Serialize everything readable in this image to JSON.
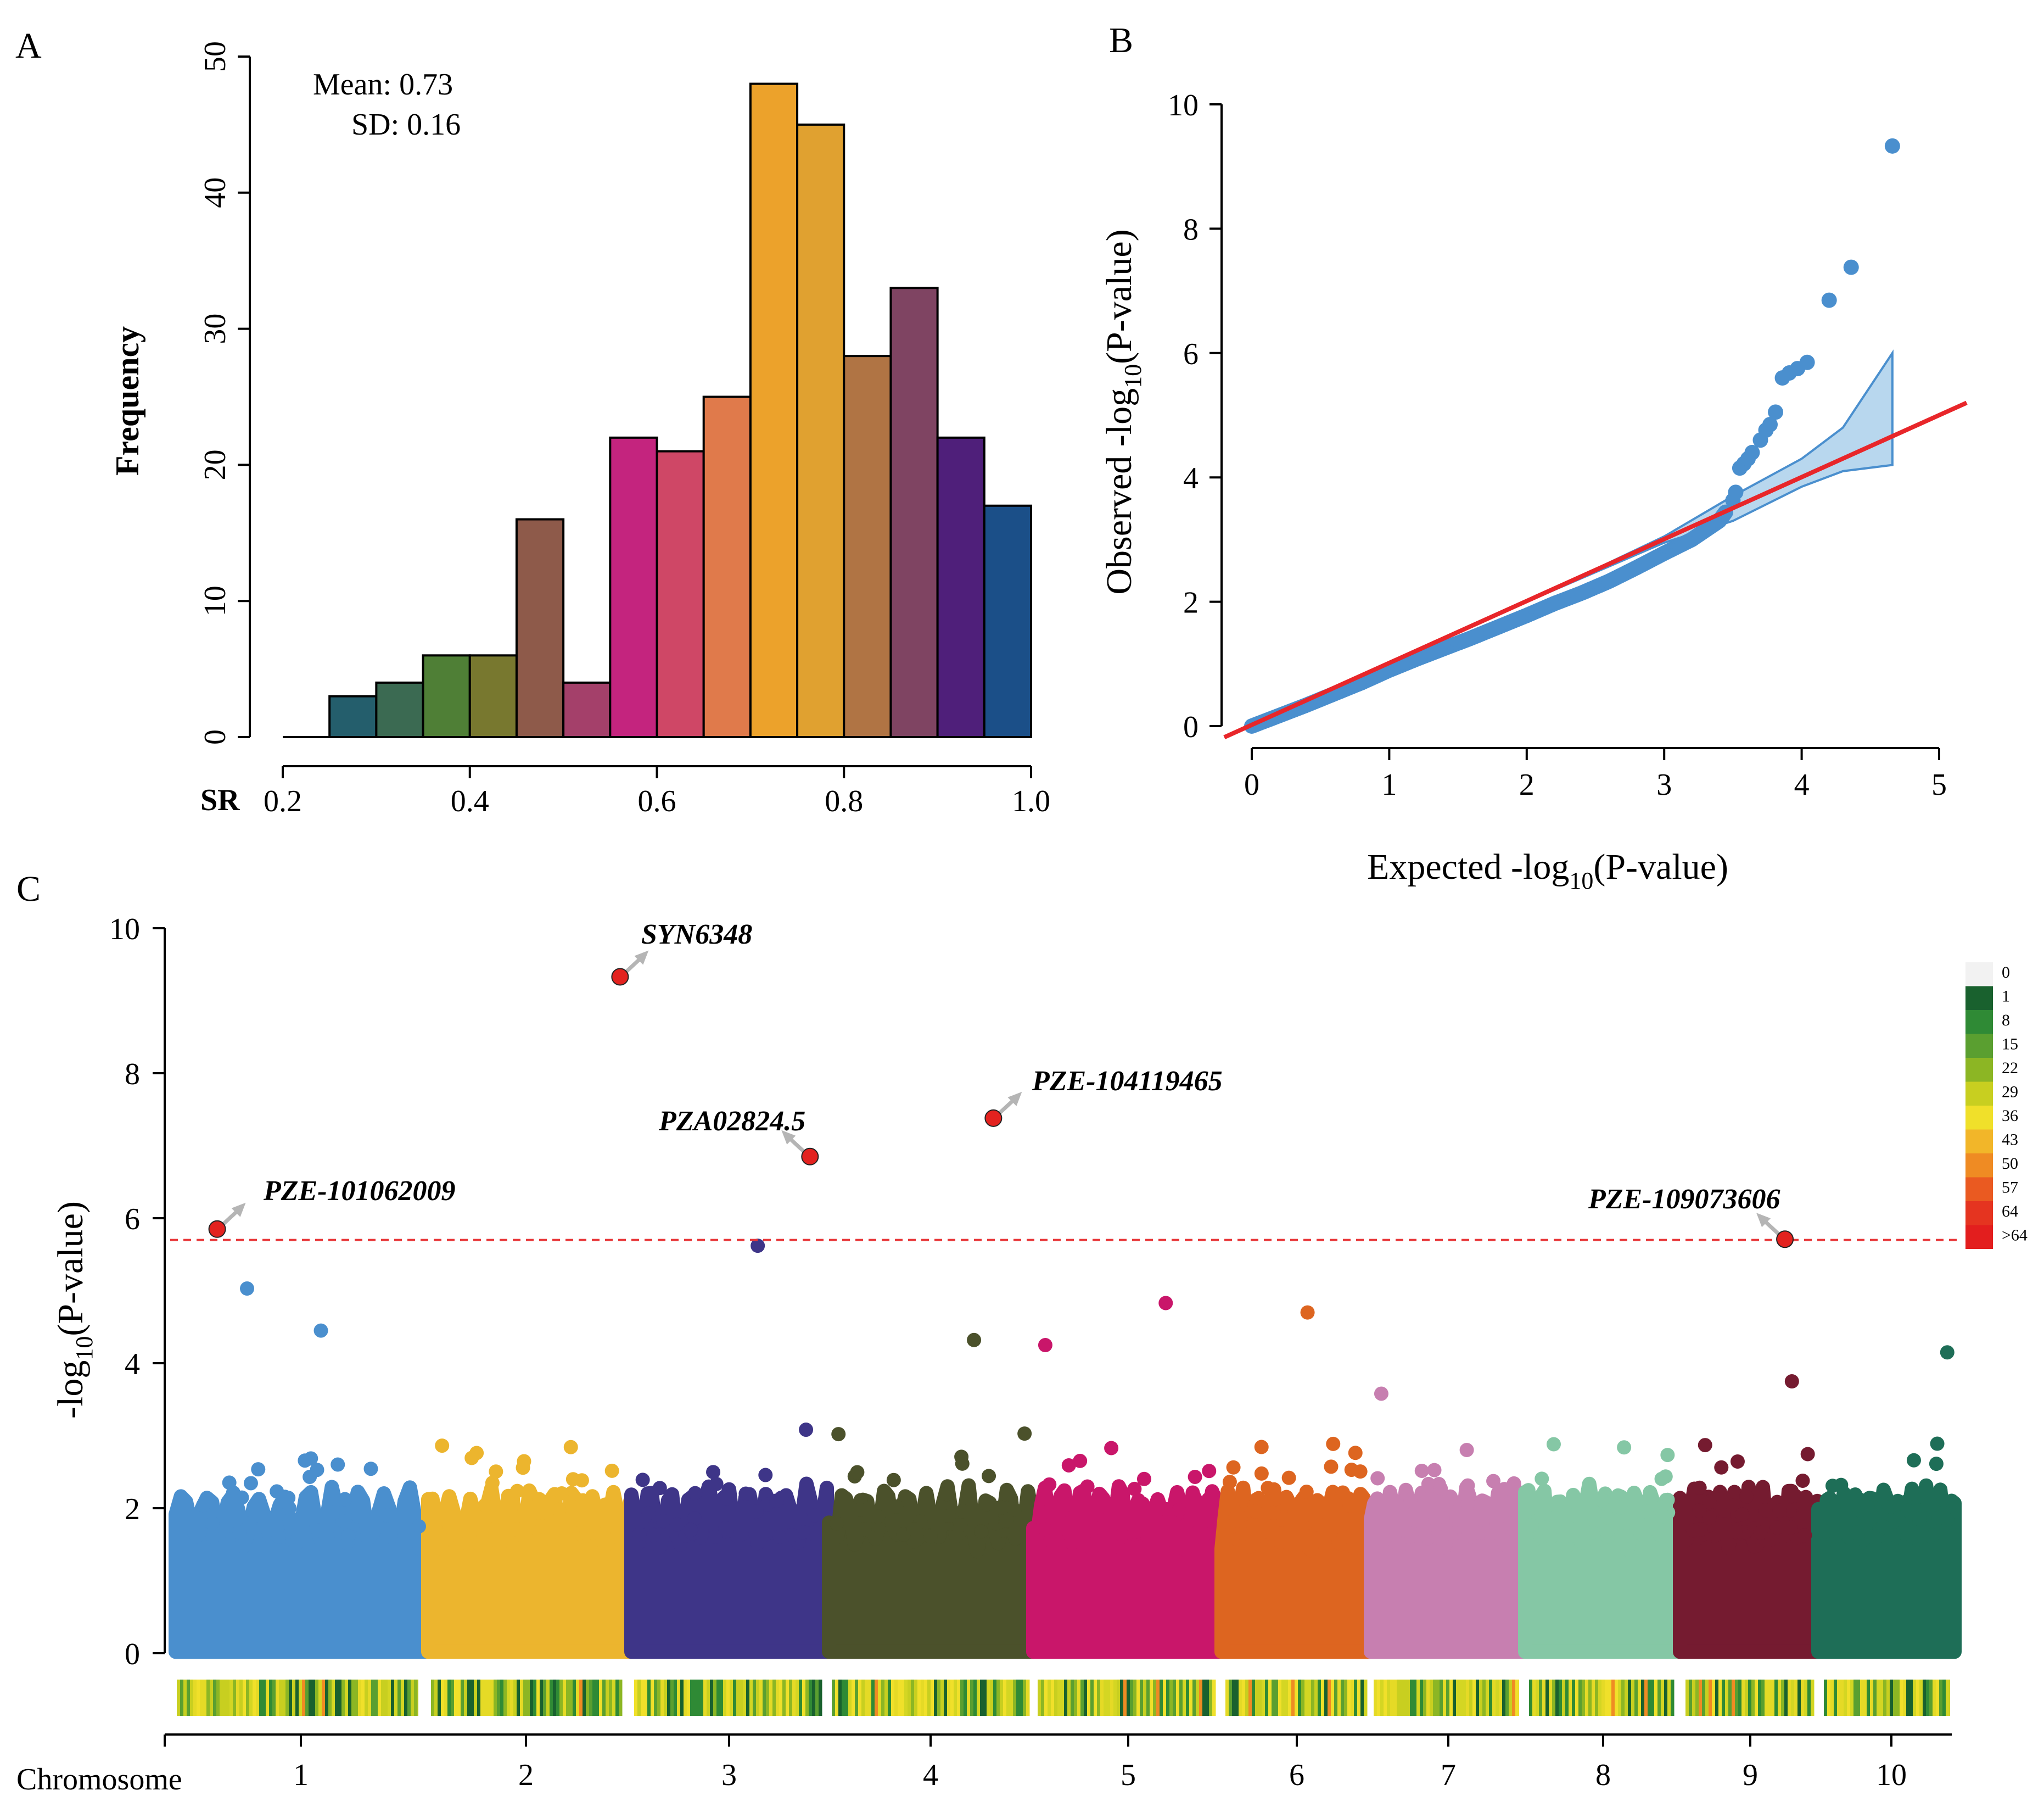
{
  "panels": {
    "A": {
      "label": "A"
    },
    "B": {
      "label": "B"
    },
    "C": {
      "label": "C"
    }
  },
  "colors": {
    "hist_bars": [
      "#245e6c",
      "#3b6a52",
      "#4f7f36",
      "#78782f",
      "#8e5a4a",
      "#a4406a",
      "#c4247e",
      "#cf4766",
      "#e07a4b",
      "#eca22b",
      "#e0a130",
      "#b07444",
      "#7f4462",
      "#4f1f7a",
      "#1b4f88"
    ],
    "qq_points": "#4a8fce",
    "qq_band": "#b8d7ee",
    "qq_line": "#e8262a",
    "threshold": "#e8393b",
    "highlight": "#e3221f",
    "chromosomes": [
      "#4a8fce",
      "#ecb52e",
      "#3e3588",
      "#4b512b",
      "#c9166a",
      "#dd6520",
      "#c77fb0",
      "#85c7a5",
      "#751b30",
      "#1e6e57"
    ],
    "heat_scale": [
      "#f2f2f2",
      "#19612e",
      "#2f8a35",
      "#5a9f30",
      "#8cb624",
      "#c8cf20",
      "#f0e02a",
      "#f2b629",
      "#ef8b23",
      "#ea5a21",
      "#e53420",
      "#e31e1e"
    ]
  },
  "chart_data": [
    {
      "type": "bar",
      "panel": "A",
      "title": "",
      "xlabel": "SR",
      "ylabel": "Frequency",
      "annotation_mean": "Mean: 0.73",
      "annotation_sd": "SD: 0.16",
      "bin_edges": [
        0.25,
        0.3,
        0.35,
        0.4,
        0.45,
        0.5,
        0.55,
        0.6,
        0.65,
        0.7,
        0.75,
        0.8,
        0.85,
        0.9,
        0.95,
        1.0
      ],
      "values": [
        3,
        4,
        6,
        6,
        16,
        4,
        22,
        21,
        25,
        48,
        45,
        28,
        33,
        22,
        17
      ],
      "xlim": [
        0.2,
        1.0
      ],
      "ylim": [
        0,
        50
      ],
      "xticks": [
        "0.2",
        "0.4",
        "0.6",
        "0.8",
        "1.0"
      ],
      "xtick_values": [
        0.2,
        0.4,
        0.6,
        0.8,
        1.0
      ],
      "yticks": [
        "0",
        "10",
        "20",
        "30",
        "40",
        "50"
      ],
      "ytick_values": [
        0,
        10,
        20,
        30,
        40,
        50
      ]
    },
    {
      "type": "scatter",
      "panel": "B",
      "xlabel_prefix": "Expected -log",
      "xlabel_sub": "10",
      "xlabel_suffix": "(P-value)",
      "ylabel_prefix": "Observed -log",
      "ylabel_sub": "10",
      "ylabel_suffix": "(P-value)",
      "xlim": [
        0,
        5
      ],
      "ylim": [
        0,
        10
      ],
      "xticks": [
        "0",
        "1",
        "2",
        "3",
        "4",
        "5"
      ],
      "xtick_values": [
        0,
        1,
        2,
        3,
        4,
        5
      ],
      "yticks": [
        "0",
        "2",
        "4",
        "6",
        "8",
        "10"
      ],
      "ytick_values": [
        0,
        2,
        4,
        6,
        8,
        10
      ],
      "diagonal": [
        [
          -0.2,
          -0.18
        ],
        [
          5.2,
          5.2
        ]
      ],
      "confidence_band_upper": [
        [
          0,
          0
        ],
        [
          1,
          1
        ],
        [
          2,
          2
        ],
        [
          3,
          3.05
        ],
        [
          3.5,
          3.7
        ],
        [
          4,
          4.3
        ],
        [
          4.3,
          4.8
        ],
        [
          4.66,
          6.0
        ]
      ],
      "confidence_band_lower": [
        [
          4.66,
          4.2
        ],
        [
          4.3,
          4.1
        ],
        [
          4,
          3.85
        ],
        [
          3.5,
          3.3
        ],
        [
          3,
          2.95
        ],
        [
          2,
          2
        ],
        [
          1,
          1
        ],
        [
          0,
          0
        ]
      ],
      "points_curve": [
        [
          0,
          0
        ],
        [
          0.2,
          0.17
        ],
        [
          0.4,
          0.34
        ],
        [
          0.6,
          0.52
        ],
        [
          0.8,
          0.7
        ],
        [
          1.0,
          0.9
        ],
        [
          1.2,
          1.08
        ],
        [
          1.4,
          1.25
        ],
        [
          1.6,
          1.42
        ],
        [
          1.8,
          1.6
        ],
        [
          2.0,
          1.78
        ],
        [
          2.2,
          1.97
        ],
        [
          2.4,
          2.14
        ],
        [
          2.6,
          2.33
        ],
        [
          2.8,
          2.55
        ],
        [
          3.0,
          2.78
        ],
        [
          3.2,
          3.0
        ],
        [
          3.3,
          3.15
        ],
        [
          3.4,
          3.3
        ],
        [
          3.45,
          3.45
        ]
      ],
      "points_tail": [
        [
          3.5,
          3.63
        ],
        [
          3.52,
          3.76
        ],
        [
          3.55,
          4.15
        ],
        [
          3.58,
          4.22
        ],
        [
          3.61,
          4.3
        ],
        [
          3.64,
          4.4
        ],
        [
          3.7,
          4.6
        ],
        [
          3.74,
          4.76
        ],
        [
          3.77,
          4.85
        ],
        [
          3.81,
          5.05
        ],
        [
          3.86,
          5.6
        ],
        [
          3.91,
          5.68
        ],
        [
          3.97,
          5.75
        ],
        [
          4.04,
          5.85
        ],
        [
          4.2,
          6.85
        ],
        [
          4.36,
          7.38
        ],
        [
          4.66,
          9.33
        ]
      ]
    },
    {
      "type": "scatter",
      "panel": "C",
      "xlabel": "Chromosome",
      "ylabel_prefix": "-log",
      "ylabel_sub": "10",
      "ylabel_suffix": "(P-value)",
      "ylim": [
        0,
        10
      ],
      "yticks": [
        "0",
        "2",
        "4",
        "6",
        "8",
        "10"
      ],
      "ytick_values": [
        0,
        2,
        4,
        6,
        8,
        10
      ],
      "threshold": 5.7,
      "chromosomes": [
        "1",
        "2",
        "3",
        "4",
        "5",
        "6",
        "7",
        "8",
        "9",
        "10"
      ],
      "chromosome_lengths": [
        301,
        237,
        232,
        241,
        217,
        169,
        176,
        175,
        157,
        150
      ],
      "top_snps": [
        {
          "name": "PZE-101062009",
          "chromosome": "1",
          "position": 50,
          "p": 5.85
        },
        {
          "name": "SYN6348",
          "chromosome": "2",
          "position": 225,
          "p": 9.33
        },
        {
          "name": "PZA02824.5",
          "chromosome": "3",
          "position": 212,
          "p": 6.85
        },
        {
          "name": "PZE-104119465",
          "chromosome": "4",
          "position": 195,
          "p": 7.38
        },
        {
          "name": "PZE-109073606",
          "chromosome": "9",
          "position": 120,
          "p": 5.71
        }
      ],
      "other_points": [
        {
          "chromosome": "1",
          "position": 86,
          "p": 5.03
        },
        {
          "chromosome": "1",
          "position": 175,
          "p": 4.45
        },
        {
          "chromosome": "3",
          "position": 150,
          "p": 5.62
        },
        {
          "chromosome": "4",
          "position": 172,
          "p": 4.32
        },
        {
          "chromosome": "5",
          "position": 14,
          "p": 4.25
        },
        {
          "chromosome": "5",
          "position": 154,
          "p": 4.83
        },
        {
          "chromosome": "6",
          "position": 98,
          "p": 4.7
        },
        {
          "chromosome": "7",
          "position": 12,
          "p": 3.58
        },
        {
          "chromosome": "9",
          "position": 128,
          "p": 3.75
        },
        {
          "chromosome": "10",
          "position": 142,
          "p": 4.15
        }
      ],
      "heat_legend_labels": [
        "0",
        "1",
        "8",
        "15",
        "22",
        "29",
        "36",
        "43",
        "50",
        "57",
        "64",
        ">64"
      ]
    }
  ]
}
